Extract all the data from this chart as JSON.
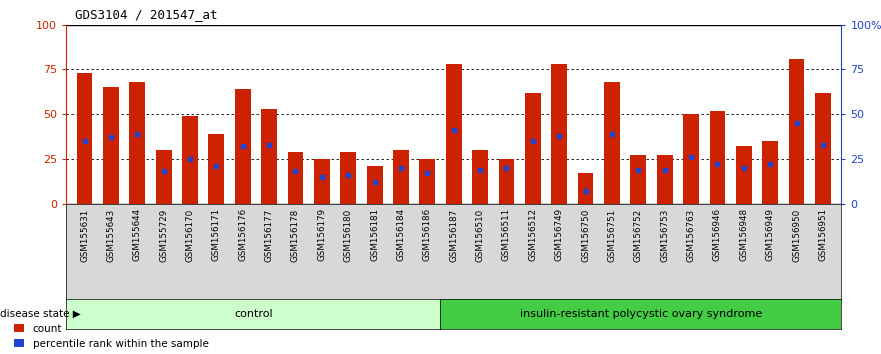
{
  "title": "GDS3104 / 201547_at",
  "samples": [
    "GSM155631",
    "GSM155643",
    "GSM155644",
    "GSM155729",
    "GSM156170",
    "GSM156171",
    "GSM156176",
    "GSM156177",
    "GSM156178",
    "GSM156179",
    "GSM156180",
    "GSM156181",
    "GSM156184",
    "GSM156186",
    "GSM156187",
    "GSM156510",
    "GSM156511",
    "GSM156512",
    "GSM156749",
    "GSM156750",
    "GSM156751",
    "GSM156752",
    "GSM156753",
    "GSM156763",
    "GSM156946",
    "GSM156948",
    "GSM156949",
    "GSM156950",
    "GSM156951"
  ],
  "count_values": [
    73,
    65,
    68,
    30,
    49,
    39,
    64,
    53,
    29,
    25,
    29,
    21,
    30,
    25,
    78,
    30,
    25,
    62,
    78,
    17,
    68,
    27,
    27,
    50,
    52,
    32,
    35,
    81,
    62
  ],
  "percentile_values": [
    35,
    37,
    39,
    18,
    25,
    21,
    32,
    33,
    18,
    15,
    16,
    12,
    20,
    17,
    41,
    19,
    20,
    35,
    38,
    7,
    39,
    19,
    19,
    26,
    22,
    20,
    22,
    45,
    33
  ],
  "control_count": 14,
  "disease_count": 15,
  "control_label": "control",
  "disease_label": "insulin-resistant polycystic ovary syndrome",
  "disease_state_label": "disease state",
  "legend_count_label": "count",
  "legend_percentile_label": "percentile rank within the sample",
  "bar_color": "#cc2200",
  "percentile_color": "#2244cc",
  "control_bg": "#ccffcc",
  "disease_bg": "#44cc44",
  "yticks_left": [
    0,
    25,
    50,
    75,
    100
  ],
  "yticks_right": [
    0,
    25,
    50,
    75,
    100
  ],
  "ymax": 100
}
